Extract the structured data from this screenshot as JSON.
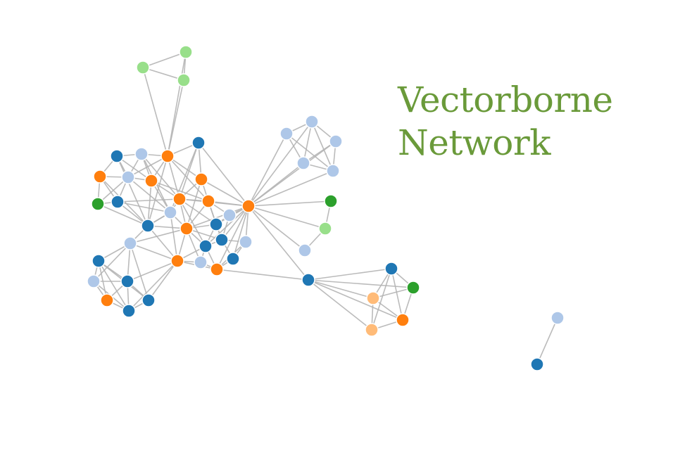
{
  "title": {
    "line1": "Vectorborne",
    "line2": "Network"
  },
  "colors": {
    "dark_blue": "#1f77b4",
    "light_blue": "#aec7e8",
    "orange": "#ff7f0e",
    "light_orange": "#ffbb78",
    "green": "#2ca02c",
    "light_green": "#98df8a",
    "edge": "#b4b4b4"
  }
}
